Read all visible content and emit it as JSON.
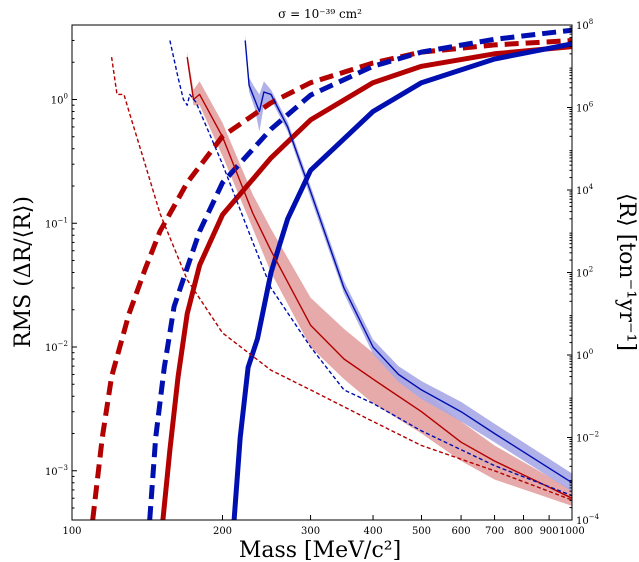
{
  "chart_data": {
    "type": "line",
    "title": "σ = 10⁻³⁹ cm²",
    "xlabel": "Mass [MeV/c²]",
    "ylabel_left": "RMS (ΔR/⟨R⟩)",
    "ylabel_right": "⟨R⟩ [ton⁻¹yr⁻¹]",
    "x_scale": "log",
    "y_left_scale": "log",
    "y_right_scale": "log",
    "xlim": [
      100,
      1000
    ],
    "ylim_left": [
      0.0004,
      4
    ],
    "ylim_right": [
      0.0001,
      100000000
    ],
    "x_ticks": [
      {
        "value": 100,
        "label": "100"
      },
      {
        "value": 200,
        "label": "200"
      },
      {
        "value": 300,
        "label": "300"
      },
      {
        "value": 400,
        "label": "400"
      },
      {
        "value": 500,
        "label": "500"
      },
      {
        "value": 600,
        "label": "600"
      },
      {
        "value": 700,
        "label": "700"
      },
      {
        "value": 800,
        "label": "800"
      },
      {
        "value": 900,
        "label": "900"
      },
      {
        "value": 1000,
        "label": "1000"
      }
    ],
    "y_left_ticks": [
      {
        "value": 0.001,
        "base": "10",
        "exp": "−3"
      },
      {
        "value": 0.01,
        "base": "10",
        "exp": "−2"
      },
      {
        "value": 0.1,
        "base": "10",
        "exp": "−1"
      },
      {
        "value": 1,
        "base": "10",
        "exp": "0"
      }
    ],
    "y_right_ticks": [
      {
        "value": 0.0001,
        "base": "10",
        "exp": "−4"
      },
      {
        "value": 0.01,
        "base": "10",
        "exp": "−2"
      },
      {
        "value": 1,
        "base": "10",
        "exp": "0"
      },
      {
        "value": 100,
        "base": "10",
        "exp": "2"
      },
      {
        "value": 10000,
        "base": "10",
        "exp": "4"
      },
      {
        "value": 1000000,
        "base": "10",
        "exp": "6"
      },
      {
        "value": 100000000,
        "base": "10",
        "exp": "8"
      }
    ],
    "colors": {
      "red": "#b30000",
      "blue": "#0010b0",
      "red_band": "#e3a1a1",
      "blue_band": "#a7a9e6"
    },
    "series": [
      {
        "color": "red",
        "axis": "right",
        "style": "thick-dashed",
        "points": [
          [
            110,
            0.0001
          ],
          [
            115,
            0.01
          ],
          [
            120,
            0.3
          ],
          [
            130,
            10
          ],
          [
            140,
            120
          ],
          [
            150,
            1000
          ],
          [
            170,
            15000
          ],
          [
            200,
            200000
          ],
          [
            250,
            1300000
          ],
          [
            300,
            4000000
          ],
          [
            400,
            12000000
          ],
          [
            500,
            22000000
          ],
          [
            700,
            33000000
          ],
          [
            1000,
            42000000
          ]
        ]
      },
      {
        "color": "red",
        "axis": "right",
        "style": "thick-solid",
        "points": [
          [
            152,
            0.0001
          ],
          [
            157,
            0.005
          ],
          [
            163,
            0.3
          ],
          [
            170,
            10
          ],
          [
            180,
            150
          ],
          [
            200,
            2500
          ],
          [
            250,
            60000
          ],
          [
            300,
            500000
          ],
          [
            400,
            4000000
          ],
          [
            500,
            10000000
          ],
          [
            700,
            20000000
          ],
          [
            1000,
            30000000
          ]
        ]
      },
      {
        "color": "blue",
        "axis": "right",
        "style": "thick-dashed",
        "points": [
          [
            143,
            0.0001
          ],
          [
            147,
            0.01
          ],
          [
            153,
            0.5
          ],
          [
            160,
            15
          ],
          [
            180,
            1000
          ],
          [
            200,
            15000
          ],
          [
            250,
            300000
          ],
          [
            300,
            2000000
          ],
          [
            400,
            10000000
          ],
          [
            500,
            22000000
          ],
          [
            700,
            45000000
          ],
          [
            1000,
            75000000
          ]
        ]
      },
      {
        "color": "blue",
        "axis": "right",
        "style": "thick-solid",
        "points": [
          [
            211,
            0.0001
          ],
          [
            217,
            0.01
          ],
          [
            225,
            0.5
          ],
          [
            235,
            2.5
          ],
          [
            250,
            100
          ],
          [
            270,
            2000
          ],
          [
            300,
            30000
          ],
          [
            400,
            800000
          ],
          [
            500,
            4000000
          ],
          [
            700,
            15000000
          ],
          [
            1000,
            35000000
          ]
        ]
      },
      {
        "color": "red",
        "axis": "left",
        "style": "thin-dashed",
        "points": [
          [
            120,
            2.2
          ],
          [
            123,
            1.1
          ],
          [
            127,
            1.1
          ],
          [
            130,
            0.8
          ],
          [
            140,
            0.3
          ],
          [
            150,
            0.12
          ],
          [
            170,
            0.035
          ],
          [
            200,
            0.013
          ],
          [
            250,
            0.0065
          ],
          [
            300,
            0.0045
          ],
          [
            400,
            0.0025
          ],
          [
            500,
            0.0016
          ],
          [
            700,
            0.001
          ],
          [
            1000,
            0.00058
          ]
        ]
      },
      {
        "color": "red",
        "axis": "left",
        "style": "thin-solid",
        "points": [
          [
            170,
            2.2
          ],
          [
            175,
            1.0
          ],
          [
            180,
            1.1
          ],
          [
            200,
            0.5
          ],
          [
            230,
            0.12
          ],
          [
            250,
            0.06
          ],
          [
            300,
            0.015
          ],
          [
            350,
            0.008
          ],
          [
            400,
            0.0055
          ],
          [
            500,
            0.003
          ],
          [
            600,
            0.0017
          ],
          [
            700,
            0.0012
          ],
          [
            1000,
            0.0006
          ]
        ]
      },
      {
        "color": "blue",
        "axis": "left",
        "style": "thin-dashed",
        "points": [
          [
            157,
            3.0
          ],
          [
            163,
            1.5
          ],
          [
            167,
            1.0
          ],
          [
            170,
            0.9
          ],
          [
            172,
            1.1
          ],
          [
            177,
            0.95
          ],
          [
            200,
            0.3
          ],
          [
            230,
            0.07
          ],
          [
            250,
            0.03
          ],
          [
            300,
            0.01
          ],
          [
            350,
            0.0045
          ],
          [
            400,
            0.0035
          ],
          [
            500,
            0.0021
          ],
          [
            700,
            0.0011
          ],
          [
            1000,
            0.00063
          ]
        ]
      },
      {
        "color": "blue",
        "axis": "left",
        "style": "thin-solid",
        "points": [
          [
            222,
            3.0
          ],
          [
            226,
            1.3
          ],
          [
            232,
            1.0
          ],
          [
            237,
            0.8
          ],
          [
            242,
            1.15
          ],
          [
            250,
            1.1
          ],
          [
            270,
            0.6
          ],
          [
            300,
            0.18
          ],
          [
            350,
            0.03
          ],
          [
            400,
            0.01
          ],
          [
            450,
            0.006
          ],
          [
            500,
            0.0045
          ],
          [
            600,
            0.003
          ],
          [
            700,
            0.002
          ],
          [
            1000,
            0.0008
          ]
        ]
      }
    ],
    "bands": [
      {
        "color": "red",
        "axis": "left",
        "x": [
          170,
          175,
          180,
          200,
          230,
          250,
          300,
          350,
          400,
          500,
          600,
          700,
          1000
        ],
        "lower": [
          2.0,
          0.9,
          0.9,
          0.35,
          0.09,
          0.04,
          0.01,
          0.0055,
          0.0035,
          0.002,
          0.0012,
          0.00085,
          0.00052
        ],
        "upper": [
          2.4,
          1.2,
          1.4,
          0.65,
          0.17,
          0.09,
          0.025,
          0.014,
          0.009,
          0.0045,
          0.0025,
          0.0016,
          0.0007
        ]
      },
      {
        "color": "blue",
        "axis": "left",
        "x": [
          222,
          226,
          232,
          237,
          242,
          250,
          270,
          300,
          350,
          400,
          450,
          500,
          600,
          700,
          1000
        ],
        "lower": [
          2.7,
          1.15,
          0.85,
          0.55,
          0.9,
          1.0,
          0.55,
          0.16,
          0.027,
          0.0088,
          0.0052,
          0.0038,
          0.0025,
          0.0017,
          0.00068
        ],
        "upper": [
          3.3,
          1.5,
          1.25,
          1.1,
          1.4,
          1.2,
          0.66,
          0.2,
          0.034,
          0.0115,
          0.007,
          0.0053,
          0.0036,
          0.0024,
          0.00095
        ]
      }
    ]
  }
}
